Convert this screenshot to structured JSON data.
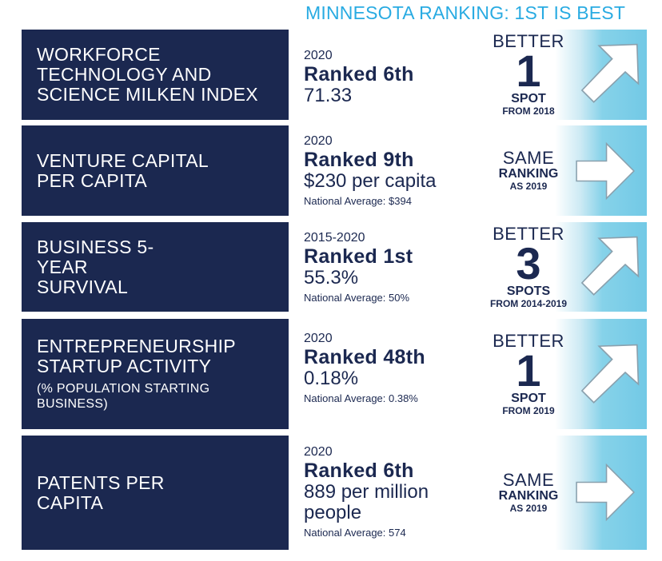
{
  "header": {
    "title": "MINNESOTA RANKING: 1ST IS BEST"
  },
  "rows": [
    {
      "label": "WORKFORCE TECHNOLOGY AND SCIENCE MILKEN INDEX",
      "year": "2020",
      "rank": "Ranked 6th",
      "value": "71.33",
      "change": {
        "word": "BETTER",
        "number": "1",
        "unit": "SPOT",
        "from": "FROM 2018",
        "direction": "up-right-arrow"
      }
    },
    {
      "label": "VENTURE CAPITAL PER CAPITA",
      "year": "2020",
      "rank": "Ranked 9th",
      "value": "$230 per capita",
      "national_average": "National Average: $394",
      "change": {
        "word": "SAME",
        "unit": "RANKING",
        "from": "AS 2019",
        "direction": "right-arrow"
      }
    },
    {
      "label": "BUSINESS 5-YEAR SURVIVAL",
      "year": "2015-2020",
      "rank": "Ranked 1st",
      "value": "55.3%",
      "national_average": "National Average: 50%",
      "change": {
        "word": "BETTER",
        "number": "3",
        "unit": "SPOTS",
        "from": "FROM 2014-2019",
        "direction": "up-right-arrow"
      }
    },
    {
      "label": "ENTREPRENEURSHIP STARTUP ACTIVITY",
      "sublabel": "(% POPULATION STARTING BUSINESS)",
      "year": "2020",
      "rank": "Ranked 48th",
      "value": "0.18%",
      "national_average": "National Average: 0.38%",
      "change": {
        "word": "BETTER",
        "number": "1",
        "unit": "SPOT",
        "from": "FROM 2019",
        "direction": "up-right-arrow"
      }
    },
    {
      "label": "PATENTS PER CAPITA",
      "year": "2020",
      "rank": "Ranked 6th",
      "value": "889 per million people",
      "national_average": "National Average: 574",
      "change": {
        "word": "SAME",
        "unit": "RANKING",
        "from": "AS 2019",
        "direction": "right-arrow"
      }
    }
  ],
  "colors": {
    "navy": "#1b2850",
    "accent_blue": "#29abe2",
    "light_blue": "#72c9e6"
  }
}
